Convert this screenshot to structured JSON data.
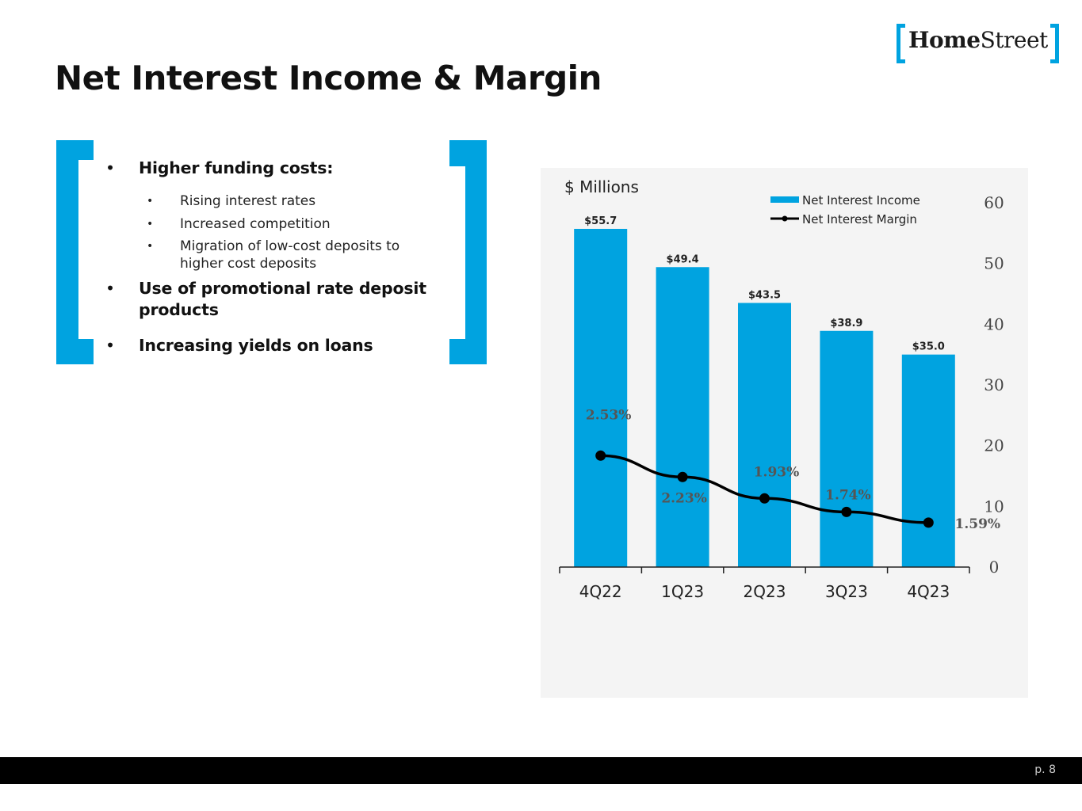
{
  "logo": {
    "bold": "Home",
    "regular": "Street"
  },
  "title": "Net Interest Income & Margin",
  "bullets": [
    {
      "text": "Higher funding costs:",
      "sub": [
        "Rising interest rates",
        "Increased competition",
        "Migration of low-cost deposits to higher cost deposits"
      ]
    },
    {
      "text": "Use of promotional rate deposit products",
      "sub": []
    },
    {
      "text": "Increasing yields on loans",
      "sub": []
    }
  ],
  "bullet_glyph": "•",
  "colors": {
    "accent": "#00a3e0",
    "bar": "#00a3e0",
    "line": "#000000",
    "panel": "#f4f4f4"
  },
  "chart_data": {
    "type": "bar",
    "ylabel": "$ Millions",
    "categories": [
      "4Q22",
      "1Q23",
      "2Q23",
      "3Q23",
      "4Q23"
    ],
    "ylim": [
      0,
      60
    ],
    "yticks": [
      0,
      10,
      20,
      30,
      40,
      50,
      60
    ],
    "legend_position": "top-right",
    "series": [
      {
        "name": "Net Interest Income",
        "kind": "bar",
        "values": [
          55.7,
          49.4,
          43.5,
          38.9,
          35.0
        ],
        "labels": [
          "$55.7",
          "$49.4",
          "$43.5",
          "$38.9",
          "$35.0"
        ]
      },
      {
        "name": "Net Interest Margin",
        "kind": "line",
        "values": [
          2.53,
          2.23,
          1.93,
          1.74,
          1.59
        ],
        "labels": [
          "2.53%",
          "2.23%",
          "1.93%",
          "1.74%",
          "1.59%"
        ],
        "unit": "%"
      }
    ]
  },
  "footer": {
    "page": "p. 8"
  }
}
